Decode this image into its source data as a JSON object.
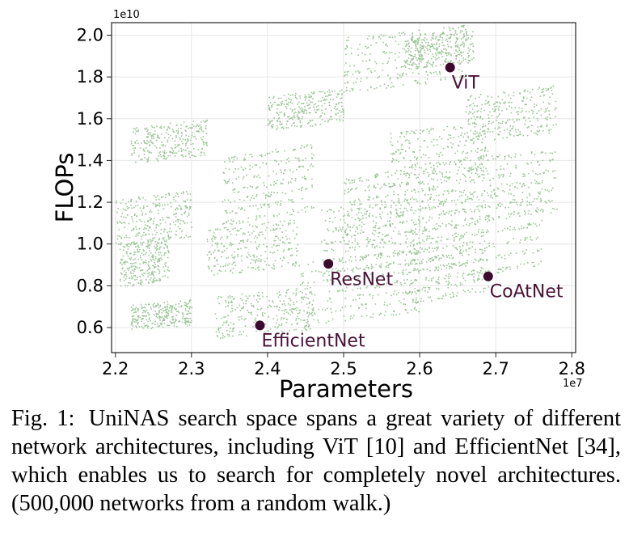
{
  "chart_data": {
    "type": "scatter",
    "xlabel": "Parameters",
    "ylabel": "FLOPs",
    "x_exponent_label": "1e7",
    "y_exponent_label": "1e10",
    "xlim": [
      2.195,
      2.805
    ],
    "ylim": [
      0.48,
      2.06
    ],
    "grid": true,
    "x_ticks": [
      2.2,
      2.3,
      2.4,
      2.5,
      2.6,
      2.7,
      2.8
    ],
    "x_tick_labels": [
      "2.2",
      "2.3",
      "2.4",
      "2.5",
      "2.6",
      "2.7",
      "2.8"
    ],
    "y_ticks": [
      0.6,
      0.8,
      1.0,
      1.2,
      1.4,
      1.6,
      1.8,
      2.0
    ],
    "y_tick_labels": [
      "0.6",
      "0.8",
      "1.0",
      "1.2",
      "1.4",
      "1.6",
      "1.8",
      "2.0"
    ],
    "scatter_color": "#8fbf8a",
    "marker_color": "#3b0a2e",
    "label_color": "#4a1338",
    "clusters": [
      {
        "x": [
          2.205,
          2.27
        ],
        "y": [
          0.8,
          0.98
        ]
      },
      {
        "x": [
          2.22,
          2.3
        ],
        "y": [
          0.6,
          0.7
        ]
      },
      {
        "x": [
          2.33,
          2.46
        ],
        "y": [
          0.56,
          0.74
        ]
      },
      {
        "x": [
          2.32,
          2.44
        ],
        "y": [
          0.86,
          1.06
        ]
      },
      {
        "x": [
          2.44,
          2.6
        ],
        "y": [
          0.62,
          0.9
        ]
      },
      {
        "x": [
          2.47,
          2.62
        ],
        "y": [
          0.86,
          1.16
        ]
      },
      {
        "x": [
          2.58,
          2.69
        ],
        "y": [
          0.72,
          1.0
        ]
      },
      {
        "x": [
          2.62,
          2.76
        ],
        "y": [
          0.82,
          1.2
        ]
      },
      {
        "x": [
          2.62,
          2.78
        ],
        "y": [
          1.1,
          1.38
        ]
      },
      {
        "x": [
          2.5,
          2.62
        ],
        "y": [
          1.0,
          1.3
        ]
      },
      {
        "x": [
          2.56,
          2.69
        ],
        "y": [
          1.28,
          1.52
        ]
      },
      {
        "x": [
          2.66,
          2.78
        ],
        "y": [
          1.5,
          1.7
        ]
      },
      {
        "x": [
          2.2,
          2.3
        ],
        "y": [
          1.0,
          1.2
        ]
      },
      {
        "x": [
          2.22,
          2.32
        ],
        "y": [
          1.4,
          1.55
        ]
      },
      {
        "x": [
          2.34,
          2.46
        ],
        "y": [
          1.1,
          1.4
        ]
      },
      {
        "x": [
          2.4,
          2.5
        ],
        "y": [
          1.56,
          1.7
        ]
      },
      {
        "x": [
          2.5,
          2.66
        ],
        "y": [
          1.74,
          1.98
        ]
      },
      {
        "x": [
          2.58,
          2.67
        ],
        "y": [
          1.85,
          1.99
        ]
      }
    ],
    "highlighted": [
      {
        "name": "ViT",
        "x": 2.64,
        "y": 1.845
      },
      {
        "name": "ResNet",
        "x": 2.48,
        "y": 0.905
      },
      {
        "name": "CoAtNet",
        "x": 2.69,
        "y": 0.845
      },
      {
        "name": "EfficientNet",
        "x": 2.39,
        "y": 0.61
      }
    ]
  },
  "caption": {
    "label": "Fig. 1:",
    "text": "UniNAS search space spans a great variety of different network architectures, including ViT [10] and EfficientNet [34], which enables us to search for completely novel architectures. (500,000 networks from a random walk.)"
  }
}
